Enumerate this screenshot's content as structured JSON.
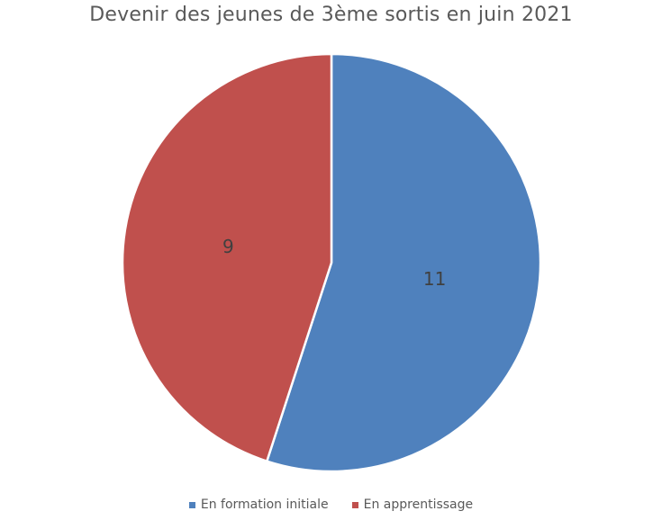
{
  "chart_data": {
    "type": "pie",
    "title": "Devenir des jeunes de 3ème sortis en juin 2021",
    "categories": [
      "En formation initiale",
      "En apprentissage"
    ],
    "values": [
      11,
      9
    ],
    "colors": [
      "#4F81BD",
      "#C0504D"
    ],
    "data_labels": [
      "11",
      "9"
    ],
    "start_angle_deg": 0,
    "direction": "clockwise",
    "legend_position": "bottom"
  }
}
